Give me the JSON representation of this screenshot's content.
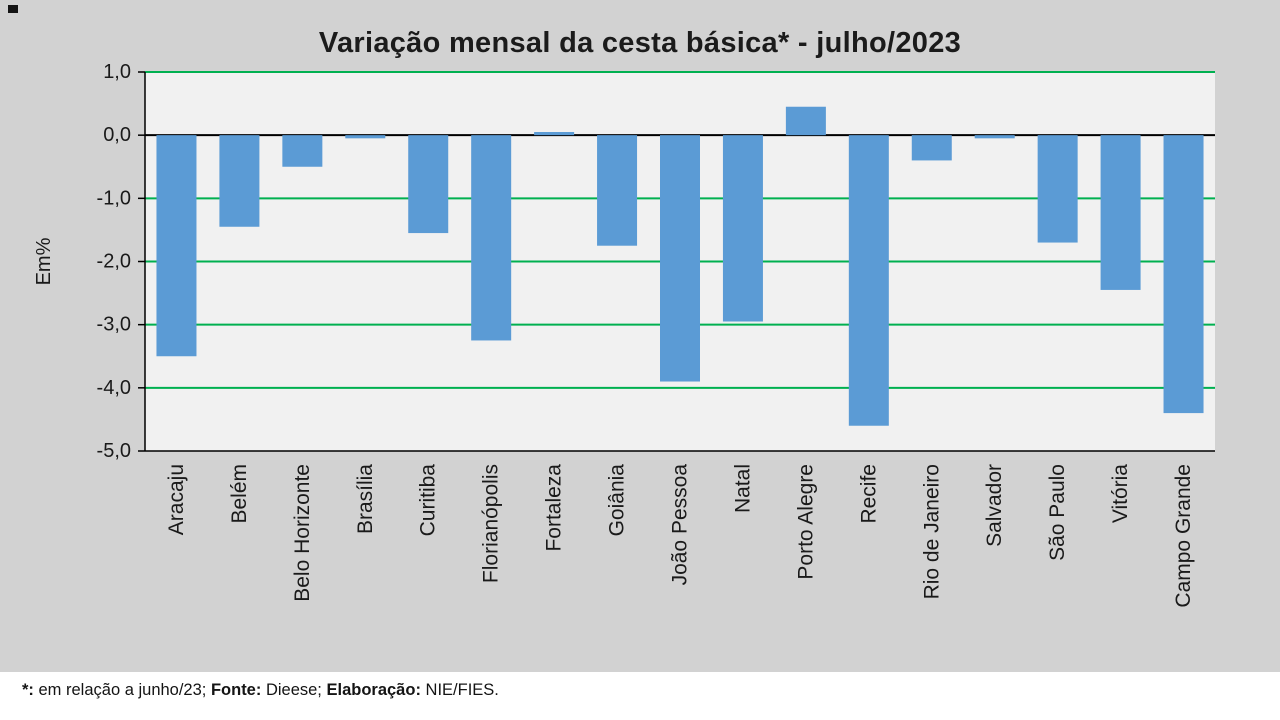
{
  "page": {
    "background": "#d2d2d2",
    "footer_background": "#ffffff"
  },
  "chart_data": {
    "type": "bar",
    "title": "Variação mensal da cesta básica* - julho/2023",
    "xlabel": "",
    "ylabel": "Em%",
    "ylim": [
      -5,
      1
    ],
    "ytick_step": 1,
    "ytick_labels": [
      "1,0",
      "0,0",
      "-1,0",
      "-2,0",
      "-3,0",
      "-4,0",
      "-5,0"
    ],
    "grid": "horizontal",
    "legend": "none",
    "categories": [
      "Aracaju",
      "Belém",
      "Belo Horizonte",
      "Brasília",
      "Curitiba",
      "Florianópolis",
      "Fortaleza",
      "Goiânia",
      "João Pessoa",
      "Natal",
      "Porto Alegre",
      "Recife",
      "Rio de Janeiro",
      "Salvador",
      "São Paulo",
      "Vitória",
      "Campo Grande"
    ],
    "values": [
      -3.5,
      -1.45,
      -0.5,
      -0.05,
      -1.55,
      -3.25,
      0.05,
      -1.75,
      -3.9,
      -2.95,
      0.45,
      -4.6,
      -0.4,
      -0.05,
      -1.7,
      -2.45,
      -4.4
    ],
    "bar_color": "#5b9bd5",
    "grid_color": "#00b050",
    "axis_color": "#000000",
    "plot_background": "#f1f1f1",
    "label_color": "#1a1a1a"
  },
  "footnote": {
    "segments": [
      {
        "text": "*:",
        "bold": true
      },
      {
        "text": " em relação a junho/23; ",
        "bold": false
      },
      {
        "text": "Fonte:",
        "bold": true
      },
      {
        "text": " Dieese; ",
        "bold": false
      },
      {
        "text": "Elaboração:",
        "bold": true
      },
      {
        "text": " NIE/FIES.",
        "bold": false
      }
    ]
  }
}
